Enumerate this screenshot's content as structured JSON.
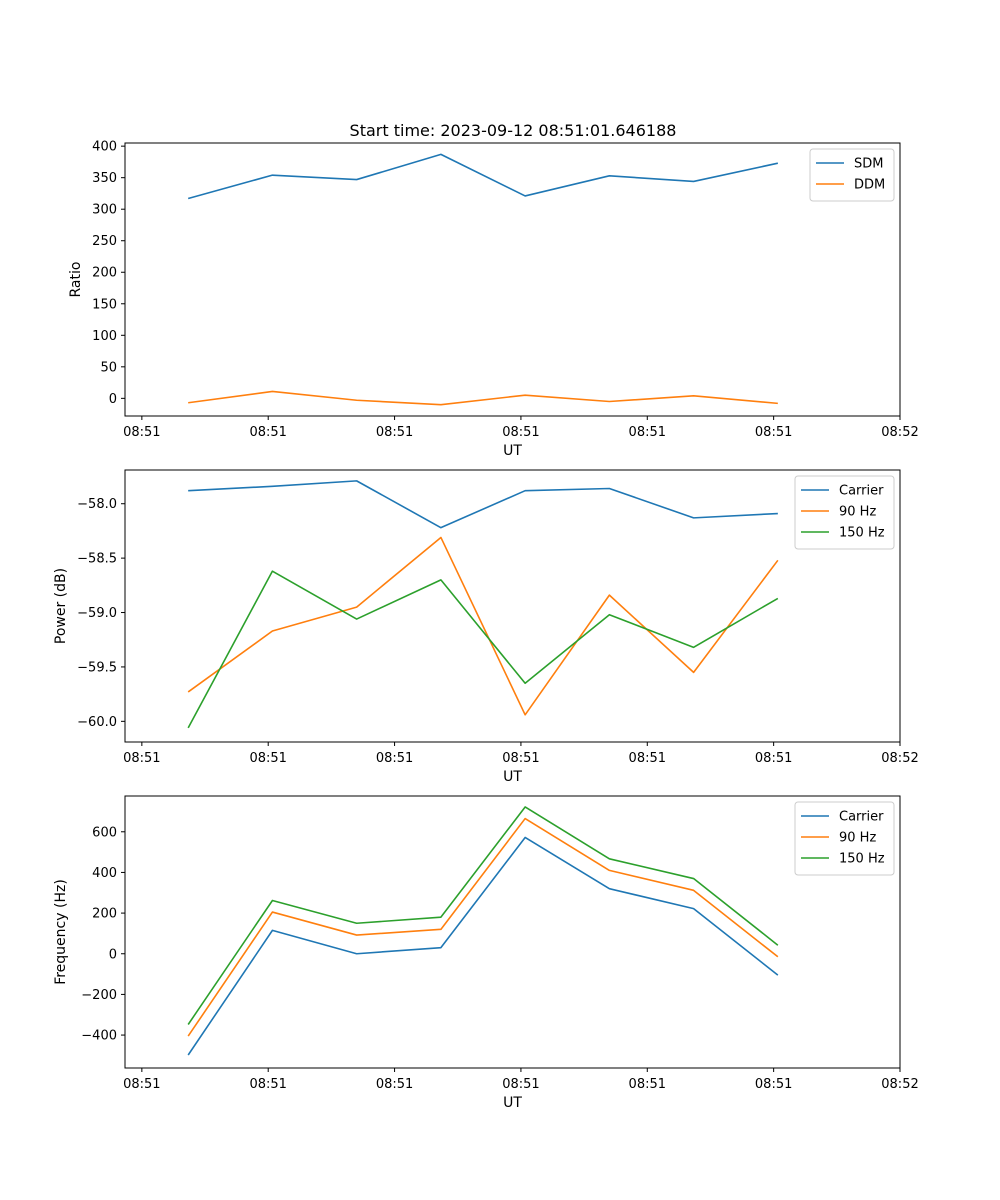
{
  "figure_title": "Start time: 2023-09-12 08:51:01.646188",
  "colors": {
    "blue": "#1f77b4",
    "orange": "#ff7f0e",
    "green": "#2ca02c"
  },
  "chart_data": [
    {
      "type": "line",
      "title": "Start time: 2023-09-12 08:51:01.646188",
      "xlabel": "UT",
      "ylabel": "Ratio",
      "xlim": [
        0,
        9.2
      ],
      "x": [
        0.75,
        1.75,
        2.75,
        3.75,
        4.75,
        5.75,
        6.75,
        7.75
      ],
      "xticks": [
        0.2,
        1.7,
        3.2,
        4.7,
        6.2,
        7.7,
        9.2
      ],
      "xtick_labels": [
        "08:51",
        "08:51",
        "08:51",
        "08:51",
        "08:51",
        "08:51",
        "08:52"
      ],
      "ylim": [
        -28,
        405
      ],
      "yticks": [
        0,
        50,
        100,
        150,
        200,
        250,
        300,
        350,
        400
      ],
      "ytick_labels": [
        "0",
        "50",
        "100",
        "150",
        "200",
        "250",
        "300",
        "350",
        "400"
      ],
      "legend_position": "top-right",
      "series": [
        {
          "name": "SDM",
          "color": "#1f77b4",
          "values": [
            317,
            354,
            347,
            387,
            321,
            353,
            344,
            373
          ]
        },
        {
          "name": "DDM",
          "color": "#ff7f0e",
          "values": [
            -7,
            11,
            -3,
            -10,
            5,
            -5,
            4,
            -8
          ]
        }
      ]
    },
    {
      "type": "line",
      "title": "",
      "xlabel": "UT",
      "ylabel": "Power (dB)",
      "xlim": [
        0,
        9.2
      ],
      "x": [
        0.75,
        1.75,
        2.75,
        3.75,
        4.75,
        5.75,
        6.75,
        7.75
      ],
      "xticks": [
        0.2,
        1.7,
        3.2,
        4.7,
        6.2,
        7.7,
        9.2
      ],
      "xtick_labels": [
        "08:51",
        "08:51",
        "08:51",
        "08:51",
        "08:51",
        "08:51",
        "08:52"
      ],
      "ylim": [
        -60.19,
        -57.69
      ],
      "yticks": [
        -60.0,
        -59.5,
        -59.0,
        -58.5,
        -58.0
      ],
      "ytick_labels": [
        "−60.0",
        "−59.5",
        "−59.0",
        "−58.5",
        "−58.0"
      ],
      "legend_position": "top-right",
      "series": [
        {
          "name": "Carrier",
          "color": "#1f77b4",
          "values": [
            -57.88,
            -57.84,
            -57.79,
            -58.22,
            -57.88,
            -57.86,
            -58.13,
            -58.09
          ]
        },
        {
          "name": "90 Hz",
          "color": "#ff7f0e",
          "values": [
            -59.73,
            -59.17,
            -58.95,
            -58.31,
            -59.94,
            -58.84,
            -59.55,
            -58.52
          ]
        },
        {
          "name": "150 Hz",
          "color": "#2ca02c",
          "values": [
            -60.06,
            -58.62,
            -59.06,
            -58.7,
            -59.65,
            -59.02,
            -59.32,
            -58.87
          ]
        }
      ]
    },
    {
      "type": "line",
      "title": "",
      "xlabel": "UT",
      "ylabel": "Frequency (Hz)",
      "xlim": [
        0,
        9.2
      ],
      "x": [
        0.75,
        1.75,
        2.75,
        3.75,
        4.75,
        5.75,
        6.75,
        7.75
      ],
      "xticks": [
        0.2,
        1.7,
        3.2,
        4.7,
        6.2,
        7.7,
        9.2
      ],
      "xtick_labels": [
        "08:51",
        "08:51",
        "08:51",
        "08:51",
        "08:51",
        "08:51",
        "08:52"
      ],
      "ylim": [
        -562,
        776
      ],
      "yticks": [
        -400,
        -200,
        0,
        200,
        400,
        600
      ],
      "ytick_labels": [
        "−400",
        "−200",
        "0",
        "200",
        "400",
        "600"
      ],
      "legend_position": "top-right",
      "series": [
        {
          "name": "Carrier",
          "color": "#1f77b4",
          "values": [
            -498,
            115,
            0,
            30,
            572,
            320,
            222,
            -105
          ]
        },
        {
          "name": "90 Hz",
          "color": "#ff7f0e",
          "values": [
            -405,
            205,
            92,
            120,
            665,
            410,
            312,
            -15
          ]
        },
        {
          "name": "150 Hz",
          "color": "#2ca02c",
          "values": [
            -348,
            262,
            150,
            180,
            722,
            467,
            370,
            42
          ]
        }
      ]
    }
  ]
}
